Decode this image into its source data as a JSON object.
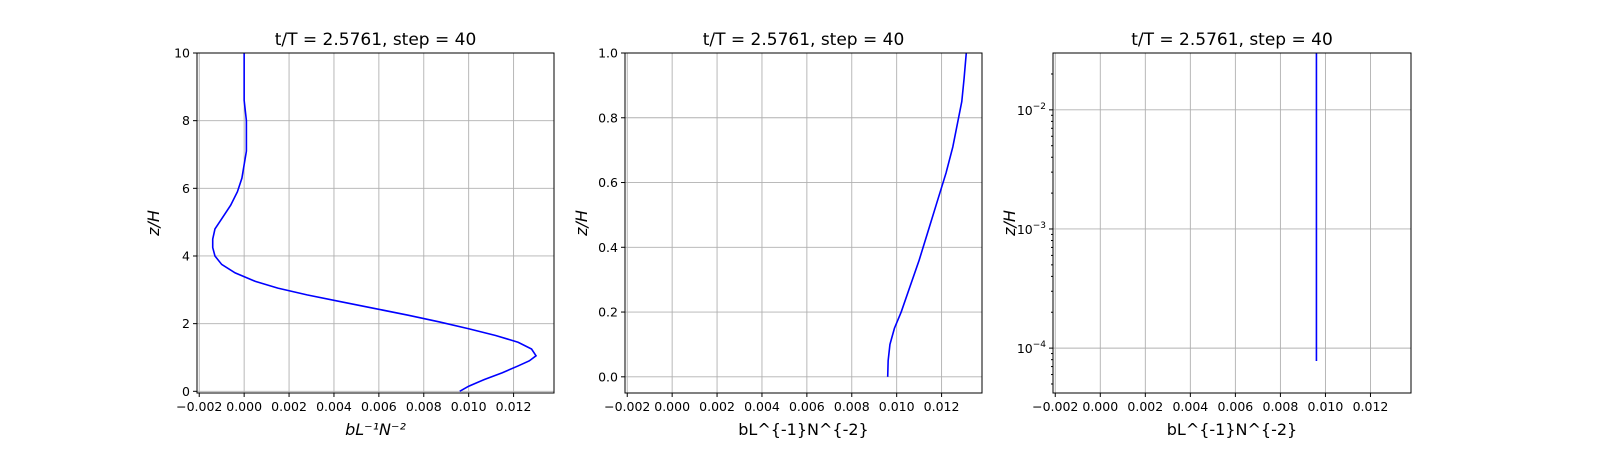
{
  "chart_data": [
    {
      "type": "line",
      "title": "t/T = 2.5761, step = 40",
      "xlabel": "bL⁻¹N⁻²",
      "ylabel": "z/H",
      "xlim": [
        -0.0021,
        0.0138
      ],
      "ylim": [
        -0.05,
        10
      ],
      "yscale": "linear",
      "xticks": [
        -0.002,
        0.0,
        0.002,
        0.004,
        0.006,
        0.008,
        0.01,
        0.012
      ],
      "xtick_labels": [
        "−0.002",
        "0.000",
        "0.002",
        "0.004",
        "0.006",
        "0.008",
        "0.010",
        "0.012"
      ],
      "yticks": [
        0,
        2,
        4,
        6,
        8,
        10
      ],
      "ytick_labels": [
        "0",
        "2",
        "4",
        "6",
        "8",
        "10"
      ],
      "grid": true,
      "color": "#0000ff",
      "x": [
        0.0096,
        0.01,
        0.0107,
        0.0115,
        0.0122,
        0.0127,
        0.013,
        0.0128,
        0.0122,
        0.0112,
        0.01,
        0.0087,
        0.0073,
        0.0058,
        0.0043,
        0.0028,
        0.0015,
        0.0005,
        -0.0004,
        -0.001,
        -0.0013,
        -0.0014,
        -0.0014,
        -0.0013,
        -0.001,
        -0.0006,
        -0.0003,
        -0.0001,
        0.0,
        0.0001,
        0.0001,
        0.0001,
        0.0,
        0.0,
        0.0
      ],
      "y": [
        0.0,
        0.15,
        0.35,
        0.55,
        0.75,
        0.9,
        1.05,
        1.25,
        1.45,
        1.65,
        1.85,
        2.05,
        2.25,
        2.45,
        2.65,
        2.85,
        3.05,
        3.25,
        3.5,
        3.75,
        4.0,
        4.25,
        4.5,
        4.8,
        5.1,
        5.5,
        5.9,
        6.3,
        6.7,
        7.1,
        7.5,
        8.0,
        8.6,
        9.3,
        10.0
      ]
    },
    {
      "type": "line",
      "title": "t/T = 2.5761, step = 40",
      "xlabel": "bL^{-1}N^{-2}",
      "ylabel": "z/H",
      "xlim": [
        -0.0021,
        0.0138
      ],
      "ylim": [
        -0.05,
        1.0
      ],
      "yscale": "linear",
      "xticks": [
        -0.002,
        0.0,
        0.002,
        0.004,
        0.006,
        0.008,
        0.01,
        0.012
      ],
      "xtick_labels": [
        "−0.002",
        "0.000",
        "0.002",
        "0.004",
        "0.006",
        "0.008",
        "0.010",
        "0.012"
      ],
      "yticks": [
        0.0,
        0.2,
        0.4,
        0.6,
        0.8,
        1.0
      ],
      "ytick_labels": [
        "0.0",
        "0.2",
        "0.4",
        "0.6",
        "0.8",
        "1.0"
      ],
      "grid": true,
      "color": "#0000ff",
      "x": [
        0.0096,
        0.00962,
        0.0097,
        0.0099,
        0.0102,
        0.0106,
        0.011,
        0.0114,
        0.0118,
        0.0122,
        0.0125,
        0.0127,
        0.0129,
        0.013,
        0.0131
      ],
      "y": [
        0.0,
        0.05,
        0.1,
        0.15,
        0.2,
        0.28,
        0.36,
        0.45,
        0.54,
        0.63,
        0.71,
        0.78,
        0.85,
        0.92,
        1.0
      ]
    },
    {
      "type": "line",
      "title": "t/T = 2.5761, step = 40",
      "xlabel": "bL^{-1}N^{-2}",
      "ylabel": "z/H",
      "xlim": [
        -0.0021,
        0.0138
      ],
      "ylim": [
        4.2e-05,
        0.03
      ],
      "yscale": "log",
      "xticks": [
        -0.002,
        0.0,
        0.002,
        0.004,
        0.006,
        0.008,
        0.01,
        0.012
      ],
      "xtick_labels": [
        "−0.002",
        "0.000",
        "0.002",
        "0.004",
        "0.006",
        "0.008",
        "0.010",
        "0.012"
      ],
      "yticks": [
        0.0001,
        0.001,
        0.01
      ],
      "ytick_bases": [
        "10",
        "10",
        "10"
      ],
      "ytick_exponents": [
        "−4",
        "−3",
        "−2"
      ],
      "grid": true,
      "color": "#0000ff",
      "x": [
        0.0096,
        0.0096,
        0.0096,
        0.0096,
        0.0096
      ],
      "y": [
        7.8e-05,
        0.0003,
        0.001,
        0.005,
        0.03
      ]
    }
  ]
}
